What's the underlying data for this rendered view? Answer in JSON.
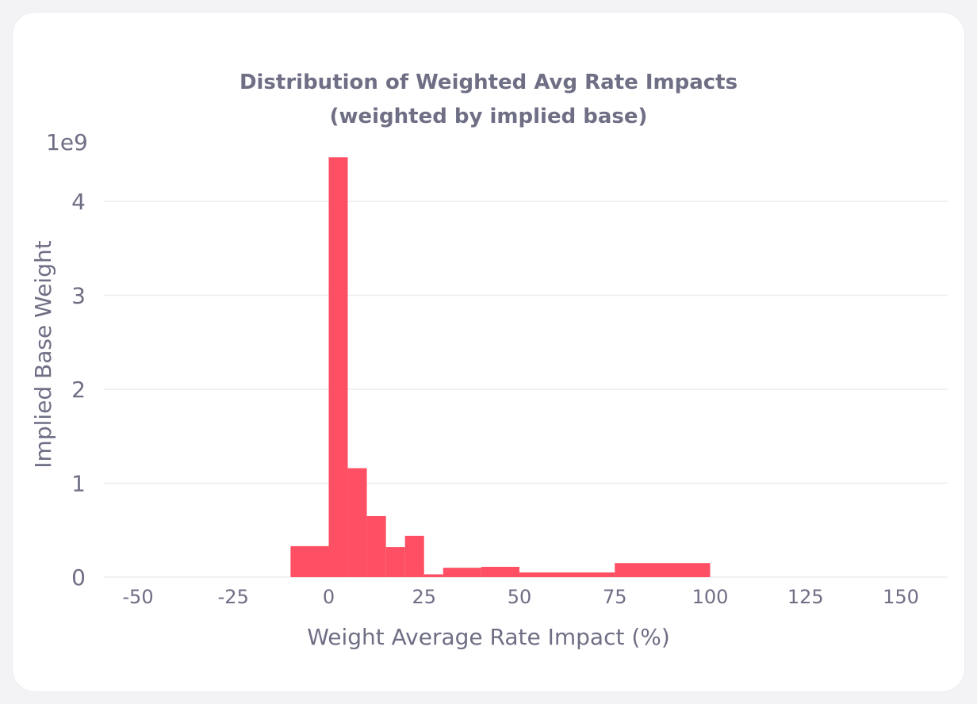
{
  "chart_data": {
    "type": "bar",
    "title_line1": "Distribution of Weighted Avg Rate Impacts",
    "title_line2": "(weighted by implied base)",
    "xlabel": "Weight Average Rate Impact (%)",
    "ylabel": "Implied Base Weight",
    "y_offset_label": "1e9",
    "xlim": [
      -60,
      160
    ],
    "ylim": [
      0,
      4.6
    ],
    "x_ticks": [
      -50,
      -25,
      0,
      25,
      50,
      75,
      100,
      125,
      150
    ],
    "x_tick_labels": [
      "-50",
      "-25",
      "0",
      "25",
      "50",
      "75",
      "100",
      "125",
      "150"
    ],
    "y_ticks": [
      0,
      1,
      2,
      3,
      4
    ],
    "y_tick_labels": [
      "0",
      "1",
      "2",
      "3",
      "4"
    ],
    "grid": true,
    "bar_color": "#ff4f64",
    "bins": [
      {
        "x0": -10,
        "x1": 0,
        "value": 0.33
      },
      {
        "x0": 0,
        "x1": 5,
        "value": 4.47
      },
      {
        "x0": 5,
        "x1": 10,
        "value": 1.16
      },
      {
        "x0": 10,
        "x1": 15,
        "value": 0.65
      },
      {
        "x0": 15,
        "x1": 20,
        "value": 0.32
      },
      {
        "x0": 20,
        "x1": 25,
        "value": 0.44
      },
      {
        "x0": 25,
        "x1": 30,
        "value": 0.03
      },
      {
        "x0": 30,
        "x1": 40,
        "value": 0.1
      },
      {
        "x0": 40,
        "x1": 50,
        "value": 0.11
      },
      {
        "x0": 50,
        "x1": 75,
        "value": 0.05
      },
      {
        "x0": 75,
        "x1": 100,
        "value": 0.15
      }
    ]
  }
}
